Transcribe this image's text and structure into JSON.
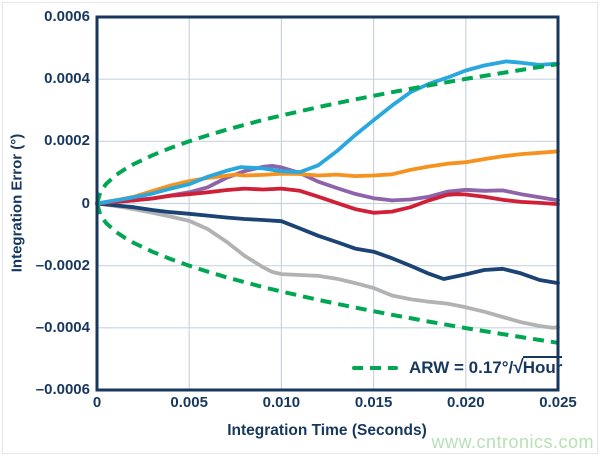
{
  "watermark": "www.cntronics.com",
  "legend": {
    "prefix": "ARW = 0.17°/",
    "radical": "√",
    "under_radical": "Hour"
  },
  "chart_data": {
    "type": "line",
    "title": "",
    "xlabel": "Integration Time (Seconds)",
    "ylabel": "Integration Error (°)",
    "xlim": [
      0,
      0.025
    ],
    "ylim": [
      -0.0006,
      0.0006
    ],
    "grid": true,
    "grid_color": "#c9d4df",
    "frame_color": "#17375e",
    "legend_position": "lower right",
    "x_ticks": [
      {
        "v": 0,
        "label": "0"
      },
      {
        "v": 0.005,
        "label": "0.005"
      },
      {
        "v": 0.01,
        "label": "0.010"
      },
      {
        "v": 0.015,
        "label": "0.015"
      },
      {
        "v": 0.02,
        "label": "0.020"
      },
      {
        "v": 0.025,
        "label": "0.025"
      }
    ],
    "y_ticks": [
      {
        "v": 0.0006,
        "label": "0.0006"
      },
      {
        "v": 0.0004,
        "label": "0.0004"
      },
      {
        "v": 0.0002,
        "label": "0.0002"
      },
      {
        "v": 0,
        "label": "0"
      },
      {
        "v": -0.0002,
        "label": "–0.0002"
      },
      {
        "v": -0.0004,
        "label": "–0.0004"
      },
      {
        "v": -0.0006,
        "label": "–0.0006"
      }
    ],
    "series": [
      {
        "name": "gray-gyro",
        "color": "#b2b2b2",
        "dashed": false,
        "points": [
          [
            0,
            0
          ],
          [
            0.001,
            -8e-06
          ],
          [
            0.002,
            -1.8e-05
          ],
          [
            0.003,
            -3e-05
          ],
          [
            0.004,
            -4.2e-05
          ],
          [
            0.005,
            -5.6e-05
          ],
          [
            0.006,
            -8.2e-05
          ],
          [
            0.007,
            -0.000122
          ],
          [
            0.008,
            -0.000168
          ],
          [
            0.009,
            -0.000205
          ],
          [
            0.0095,
            -0.00022
          ],
          [
            0.01,
            -0.000227
          ],
          [
            0.011,
            -0.00023
          ],
          [
            0.012,
            -0.000233
          ],
          [
            0.013,
            -0.000242
          ],
          [
            0.014,
            -0.000256
          ],
          [
            0.015,
            -0.000272
          ],
          [
            0.016,
            -0.000296
          ],
          [
            0.017,
            -0.000308
          ],
          [
            0.018,
            -0.000316
          ],
          [
            0.019,
            -0.000322
          ],
          [
            0.02,
            -0.000334
          ],
          [
            0.021,
            -0.000348
          ],
          [
            0.022,
            -0.000365
          ],
          [
            0.023,
            -0.000382
          ],
          [
            0.024,
            -0.000394
          ],
          [
            0.0247,
            -0.0004
          ],
          [
            0.025,
            -0.000398
          ]
        ]
      },
      {
        "name": "navy-gyro",
        "color": "#1b4373",
        "dashed": false,
        "points": [
          [
            0,
            0
          ],
          [
            0.001,
            -6e-06
          ],
          [
            0.002,
            -1.2e-05
          ],
          [
            0.003,
            -2.1e-05
          ],
          [
            0.004,
            -2.8e-05
          ],
          [
            0.005,
            -3.3e-05
          ],
          [
            0.006,
            -3.9e-05
          ],
          [
            0.007,
            -4.5e-05
          ],
          [
            0.008,
            -5e-05
          ],
          [
            0.009,
            -5.3e-05
          ],
          [
            0.01,
            -5.7e-05
          ],
          [
            0.011,
            -8e-05
          ],
          [
            0.012,
            -0.000104
          ],
          [
            0.013,
            -0.000124
          ],
          [
            0.014,
            -0.000145
          ],
          [
            0.015,
            -0.000155
          ],
          [
            0.016,
            -0.000176
          ],
          [
            0.017,
            -0.0002
          ],
          [
            0.018,
            -0.000226
          ],
          [
            0.0188,
            -0.000243
          ],
          [
            0.02,
            -0.000228
          ],
          [
            0.021,
            -0.000214
          ],
          [
            0.022,
            -0.00021
          ],
          [
            0.023,
            -0.000225
          ],
          [
            0.024,
            -0.000246
          ],
          [
            0.025,
            -0.000256
          ]
        ]
      },
      {
        "name": "purple-gyro",
        "color": "#8d64aa",
        "dashed": false,
        "points": [
          [
            0,
            0
          ],
          [
            0.001,
            5e-06
          ],
          [
            0.002,
            1e-05
          ],
          [
            0.003,
            1.6e-05
          ],
          [
            0.004,
            2.6e-05
          ],
          [
            0.005,
            3.6e-05
          ],
          [
            0.006,
            5.2e-05
          ],
          [
            0.007,
            8.2e-05
          ],
          [
            0.008,
            0.000104
          ],
          [
            0.009,
            0.000118
          ],
          [
            0.0095,
            0.000121
          ],
          [
            0.01,
            0.000116
          ],
          [
            0.011,
            9.8e-05
          ],
          [
            0.012,
            7e-05
          ],
          [
            0.013,
            5e-05
          ],
          [
            0.014,
            3.1e-05
          ],
          [
            0.015,
            1.7e-05
          ],
          [
            0.016,
            1e-05
          ],
          [
            0.017,
            1.3e-05
          ],
          [
            0.018,
            2.2e-05
          ],
          [
            0.019,
            3.8e-05
          ],
          [
            0.02,
            4.4e-05
          ],
          [
            0.021,
            4.1e-05
          ],
          [
            0.022,
            4.2e-05
          ],
          [
            0.023,
            3e-05
          ],
          [
            0.024,
            2e-05
          ],
          [
            0.025,
            1e-05
          ]
        ]
      },
      {
        "name": "red-gyro",
        "color": "#cf2038",
        "dashed": false,
        "points": [
          [
            0,
            0
          ],
          [
            0.001,
            5e-06
          ],
          [
            0.002,
            1e-05
          ],
          [
            0.003,
            1.6e-05
          ],
          [
            0.004,
            2.5e-05
          ],
          [
            0.005,
            3e-05
          ],
          [
            0.006,
            3.6e-05
          ],
          [
            0.007,
            4.3e-05
          ],
          [
            0.008,
            4.8e-05
          ],
          [
            0.009,
            4.5e-05
          ],
          [
            0.01,
            4.8e-05
          ],
          [
            0.011,
            4.1e-05
          ],
          [
            0.012,
            2.2e-05
          ],
          [
            0.013,
            2e-06
          ],
          [
            0.014,
            -1.8e-05
          ],
          [
            0.015,
            -3e-05
          ],
          [
            0.016,
            -2.6e-05
          ],
          [
            0.017,
            -1.2e-05
          ],
          [
            0.018,
            1e-05
          ],
          [
            0.019,
            2.8e-05
          ],
          [
            0.0195,
            3e-05
          ],
          [
            0.02,
            2.9e-05
          ],
          [
            0.021,
            2.2e-05
          ],
          [
            0.022,
            1.2e-05
          ],
          [
            0.023,
            5e-06
          ],
          [
            0.024,
            2e-06
          ],
          [
            0.025,
            -2e-06
          ]
        ]
      },
      {
        "name": "orange-gyro",
        "color": "#f6921e",
        "dashed": false,
        "points": [
          [
            0,
            0
          ],
          [
            0.001,
            1e-05
          ],
          [
            0.002,
            2.2e-05
          ],
          [
            0.003,
            4e-05
          ],
          [
            0.004,
            5.8e-05
          ],
          [
            0.005,
            7.2e-05
          ],
          [
            0.006,
            8.2e-05
          ],
          [
            0.007,
            8.9e-05
          ],
          [
            0.0075,
            9.3e-05
          ],
          [
            0.008,
            9e-05
          ],
          [
            0.009,
            9.2e-05
          ],
          [
            0.01,
            9.6e-05
          ],
          [
            0.011,
            9.5e-05
          ],
          [
            0.012,
            9e-05
          ],
          [
            0.013,
            9.3e-05
          ],
          [
            0.014,
            8.8e-05
          ],
          [
            0.015,
            9e-05
          ],
          [
            0.016,
            9.4e-05
          ],
          [
            0.017,
            0.000108
          ],
          [
            0.018,
            0.000119
          ],
          [
            0.019,
            0.000128
          ],
          [
            0.02,
            0.000133
          ],
          [
            0.021,
            0.000143
          ],
          [
            0.022,
            0.000152
          ],
          [
            0.023,
            0.000159
          ],
          [
            0.024,
            0.000163
          ],
          [
            0.025,
            0.000168
          ]
        ]
      },
      {
        "name": "cyan-gyro",
        "color": "#29a8e0",
        "dashed": false,
        "points": [
          [
            0,
            0
          ],
          [
            0.001,
            1e-05
          ],
          [
            0.002,
            2e-05
          ],
          [
            0.003,
            3.2e-05
          ],
          [
            0.004,
            4.8e-05
          ],
          [
            0.005,
            6.2e-05
          ],
          [
            0.006,
            8.6e-05
          ],
          [
            0.007,
            0.000105
          ],
          [
            0.0078,
            0.000117
          ],
          [
            0.009,
            0.000113
          ],
          [
            0.01,
            0.000104
          ],
          [
            0.011,
            0.000101
          ],
          [
            0.012,
            0.000123
          ],
          [
            0.013,
            0.000168
          ],
          [
            0.014,
            0.00022
          ],
          [
            0.015,
            0.000268
          ],
          [
            0.016,
            0.000315
          ],
          [
            0.017,
            0.000358
          ],
          [
            0.018,
            0.000385
          ],
          [
            0.019,
            0.000405
          ],
          [
            0.02,
            0.000428
          ],
          [
            0.021,
            0.000444
          ],
          [
            0.0222,
            0.000457
          ],
          [
            0.023,
            0.000453
          ],
          [
            0.024,
            0.000446
          ],
          [
            0.025,
            0.00045
          ]
        ]
      },
      {
        "name": "arw-envelope-upper",
        "color": "#00a651",
        "dashed": true,
        "points": [
          [
            0,
            0
          ],
          [
            0.0002,
            4e-05
          ],
          [
            0.0005,
            6.3e-05
          ],
          [
            0.001,
            9e-05
          ],
          [
            0.0015,
            0.00011
          ],
          [
            0.002,
            0.000127
          ],
          [
            0.003,
            0.000155
          ],
          [
            0.004,
            0.000179
          ],
          [
            0.005,
            0.0002
          ],
          [
            0.006,
            0.000219
          ],
          [
            0.007,
            0.000237
          ],
          [
            0.008,
            0.000253
          ],
          [
            0.009,
            0.000269
          ],
          [
            0.01,
            0.000283
          ],
          [
            0.012,
            0.00031
          ],
          [
            0.014,
            0.000335
          ],
          [
            0.016,
            0.000358
          ],
          [
            0.018,
            0.00038
          ],
          [
            0.02,
            0.000401
          ],
          [
            0.022,
            0.00042
          ],
          [
            0.024,
            0.000439
          ],
          [
            0.025,
            0.000448
          ]
        ]
      },
      {
        "name": "arw-envelope-lower",
        "color": "#00a651",
        "dashed": true,
        "points": [
          [
            0,
            0
          ],
          [
            0.0002,
            -4e-05
          ],
          [
            0.0005,
            -6.3e-05
          ],
          [
            0.001,
            -9e-05
          ],
          [
            0.0015,
            -0.00011
          ],
          [
            0.002,
            -0.000127
          ],
          [
            0.003,
            -0.000155
          ],
          [
            0.004,
            -0.000179
          ],
          [
            0.005,
            -0.0002
          ],
          [
            0.006,
            -0.000219
          ],
          [
            0.007,
            -0.000237
          ],
          [
            0.008,
            -0.000253
          ],
          [
            0.009,
            -0.000269
          ],
          [
            0.01,
            -0.000283
          ],
          [
            0.012,
            -0.00031
          ],
          [
            0.014,
            -0.000335
          ],
          [
            0.016,
            -0.000358
          ],
          [
            0.018,
            -0.00038
          ],
          [
            0.02,
            -0.000401
          ],
          [
            0.022,
            -0.00042
          ],
          [
            0.024,
            -0.000439
          ],
          [
            0.025,
            -0.000448
          ]
        ]
      }
    ]
  }
}
